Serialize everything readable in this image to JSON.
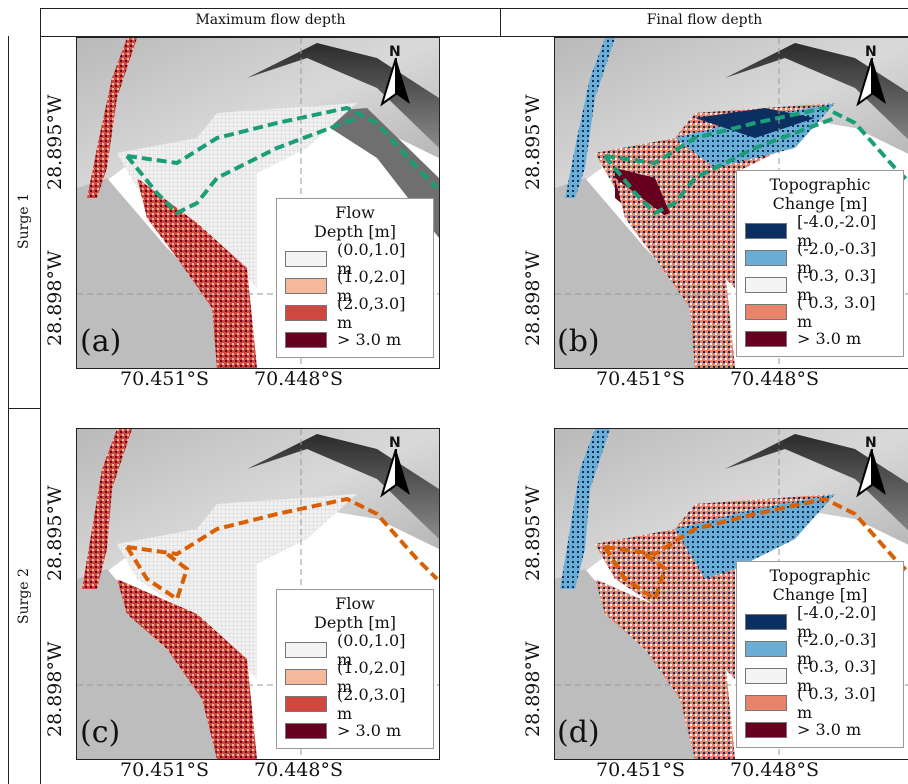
{
  "headers": {
    "col1": "Maximum flow depth",
    "col2": "Final flow depth"
  },
  "rows": {
    "row1": "Surge 1",
    "row2": "Surge 2"
  },
  "axes": {
    "y_top": "28.895°W",
    "y_bottom": "28.898°W",
    "x_left": "70.451°S",
    "x_right": "70.448°S"
  },
  "north_label": "N",
  "panel_labels": [
    "(a)",
    "(b)",
    "(c)",
    "(d)"
  ],
  "legend_flow": {
    "title_line1": "Flow",
    "title_line2": "Depth [m]",
    "items": [
      {
        "label": "(0.0,1.0] m",
        "color": "#f4f4f4"
      },
      {
        "label": "(1.0,2.0] m",
        "color": "#f5b89a"
      },
      {
        "label": "(2.0,3.0] m",
        "color": "#d0473f"
      },
      {
        "label": "> 3.0 m",
        "color": "#67001f"
      }
    ]
  },
  "legend_topo": {
    "title_line1": "Topographic",
    "title_line2": "Change [m]",
    "items": [
      {
        "label": "[-4.0,-2.0] m",
        "color": "#0b2f61"
      },
      {
        "label": "(-2.0,-0.3] m",
        "color": "#6aaed6"
      },
      {
        "label": "(-0.3, 0.3] m",
        "color": "#f4f4f4"
      },
      {
        "label": "( 0.3, 3.0] m",
        "color": "#e8846b"
      },
      {
        "label": "> 3.0 m",
        "color": "#67001f"
      }
    ]
  },
  "outline_colors": {
    "surge1": "#1a9e77",
    "surge2": "#d95f02"
  }
}
